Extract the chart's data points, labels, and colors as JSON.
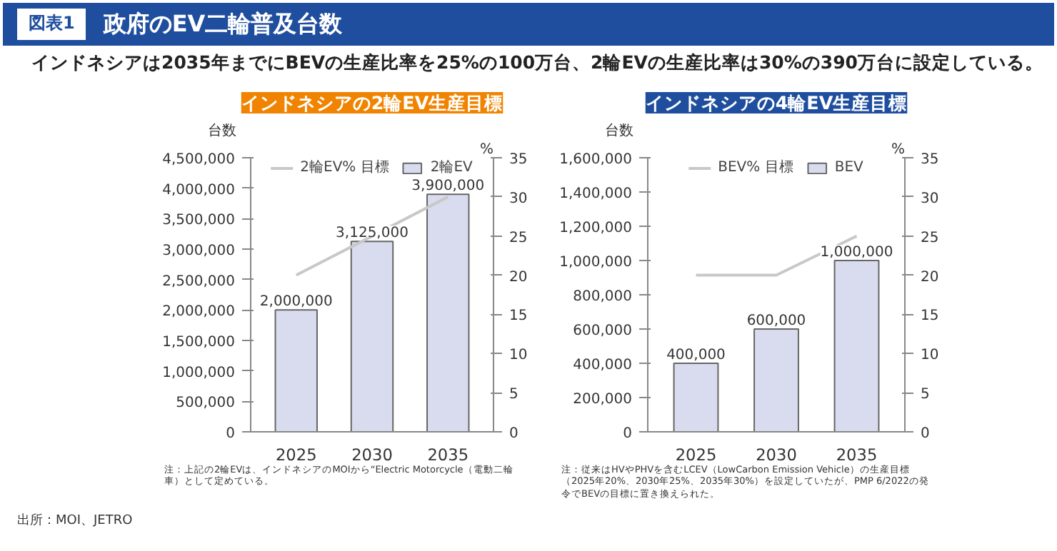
{
  "chart_data": [
    {
      "type": "other",
      "title": "政府のEV二輪普及台数",
      "subtitle": "インドネシアは2035年までにBEVの生産比率を25%の100万台、2輪EVの生産比率は30%の390万台に設定している。",
      "annotations": [
        "図表1",
        "出所：MOI、JETRO"
      ]
    },
    {
      "type": "bar",
      "title": "インドネシアの2輪EV生産目標",
      "ylabel": "台数",
      "y2label": "%",
      "categories": [
        "2025",
        "2030",
        "2035"
      ],
      "series": [
        {
          "name": "2輪EV% 目標",
          "type": "line",
          "axis": "y2",
          "color": "#c8c8c8",
          "values": [
            20,
            25,
            30
          ]
        },
        {
          "name": "2輪EV",
          "type": "bar",
          "color": "#d9dcee",
          "values": [
            2000000,
            3125000,
            3900000
          ],
          "value_labels": [
            "2,000,000",
            "3,125,000",
            "3,900,000"
          ]
        }
      ],
      "ylim": [
        0,
        4500000
      ],
      "yticks": [
        0,
        {
          "value": 500000,
          "label": "500,000"
        },
        {
          "value": 1000000,
          "label": "1,000,000"
        },
        {
          "value": 1500000,
          "label": "1,500,000"
        },
        {
          "value": 2000000,
          "label": "2,000,000"
        },
        {
          "value": 2500000,
          "label": "2,500,000"
        },
        {
          "value": 3000000,
          "label": "3,000,000"
        },
        {
          "value": 3500000,
          "label": "3,500,000"
        },
        {
          "value": 4000000,
          "label": "4,000,000"
        },
        {
          "value": 4500000,
          "label": "4,500,000"
        }
      ],
      "y2lim": [
        0,
        35
      ],
      "y2ticks": [
        0,
        5,
        10,
        15,
        20,
        25,
        30,
        35
      ],
      "legend": "top",
      "grid": false,
      "annotations": [
        "注：上記の2輪EVは、インドネシアのMOIから“Electric Motorcycle（電動二輪車）として定めている。"
      ]
    },
    {
      "type": "bar",
      "title": "インドネシアの4輪EV生産目標",
      "ylabel": "台数",
      "y2label": "%",
      "categories": [
        "2025",
        "2030",
        "2035"
      ],
      "series": [
        {
          "name": "BEV% 目標",
          "type": "line",
          "axis": "y2",
          "color": "#c8c8c8",
          "values": [
            20,
            20,
            25
          ]
        },
        {
          "name": "BEV",
          "type": "bar",
          "color": "#d9dcee",
          "values": [
            400000,
            600000,
            1000000
          ],
          "value_labels": [
            "400,000",
            "600,000",
            "1,000,000"
          ]
        }
      ],
      "ylim": [
        0,
        1600000
      ],
      "yticks": [
        0,
        {
          "value": 200000,
          "label": "200,000"
        },
        {
          "value": 400000,
          "label": "400,000"
        },
        {
          "value": 600000,
          "label": "600,000"
        },
        {
          "value": 800000,
          "label": "800,000"
        },
        {
          "value": 1000000,
          "label": "1,000,000"
        },
        {
          "value": 1200000,
          "label": "1,200,000"
        },
        {
          "value": 1400000,
          "label": "1,400,000"
        },
        {
          "value": 1600000,
          "label": "1,600,000"
        }
      ],
      "y2lim": [
        0,
        35
      ],
      "y2ticks": [
        0,
        5,
        10,
        15,
        20,
        25,
        30,
        35
      ],
      "legend": "top",
      "grid": false,
      "annotations": [
        "注：従来はHVやPHVを含むLCEV（LowCarbon Emission Vehicle）の生産目標（2025年20%、2030年25%、2035年30%）を設定していたが、PMP 6/2022の発令でBEVの目標に置き換えられた。"
      ]
    }
  ]
}
